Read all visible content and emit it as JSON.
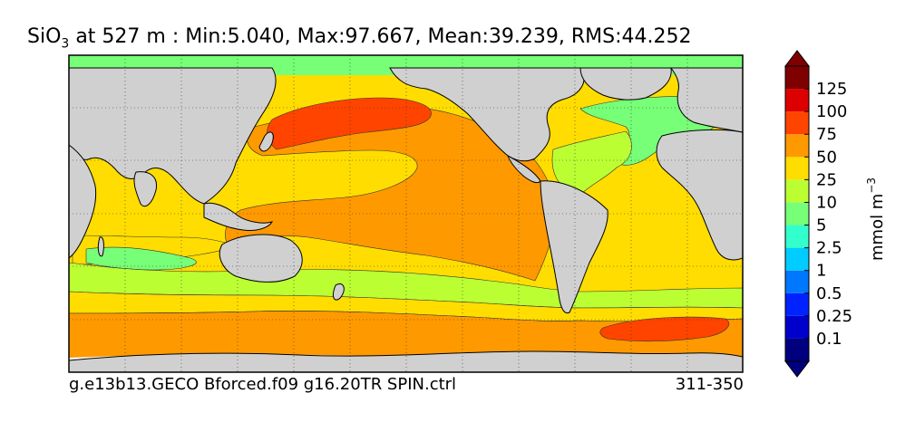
{
  "title": {
    "species": "SiO",
    "subscript": "3",
    "rest": " at 527 m : Min:5.040, Max:97.667, Mean:39.239, RMS:44.252"
  },
  "footer": {
    "case_name": "g.e13b13.GECO Bforced.f09 g16.20TR SPIN.ctrl",
    "years": "311-350"
  },
  "colorbar": {
    "units": "mmol m",
    "units_exponent": "−3",
    "extend": "both",
    "tick_labels": [
      "0.1",
      "0.25",
      "0.5",
      "1",
      "2.5",
      "5",
      "10",
      "25",
      "50",
      "75",
      "100",
      "125"
    ],
    "colors": [
      "#00007f",
      "#0000cc",
      "#0022ff",
      "#0077ff",
      "#00ccff",
      "#33ffcc",
      "#77ff77",
      "#bbff33",
      "#ffdd00",
      "#ff9900",
      "#ff4400",
      "#dd0000",
      "#7f0000"
    ],
    "under_color": "#00007f",
    "over_color": "#7f0000"
  },
  "map": {
    "projection": "cylindrical",
    "land_color": "#d0d0d0",
    "graticule": "dotted"
  }
}
